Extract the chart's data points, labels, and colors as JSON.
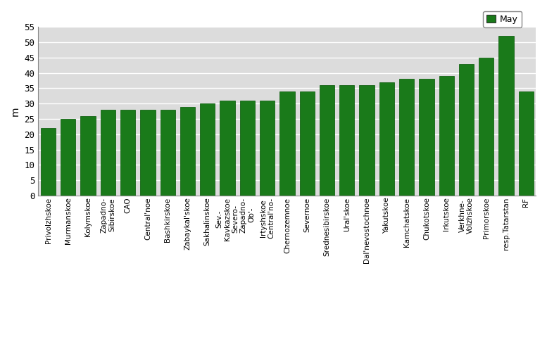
{
  "categories": [
    "Privolzhskoe",
    "Murmanskoe",
    "Kolymskoe",
    "Zapadno-\nSibirskoe",
    "CAO",
    "Central'noe",
    "Bashkirskoe",
    "Zabaykal'skoe",
    "Sakhalinskoe",
    "Sev.-\nKavkazskoe\nSevero-",
    "Zapadno-\nOb'-",
    "Irtyshskoe\nCentral'no-",
    "Chernozemnoe",
    "Severnoe",
    "Srednesibirskoe",
    "Ural'skoe",
    "Dal'nevostochnoe",
    "Yakutskoe",
    "Kamchatskoe",
    "Chukotskoe",
    "Irkutskoe",
    "Verkhne-\nVolzhskoe",
    "Primorskoe",
    "resp.Tatarstan",
    "RF"
  ],
  "values": [
    22,
    25,
    26,
    28,
    28,
    28,
    28,
    29,
    30,
    31,
    31,
    31,
    34,
    34,
    36,
    36,
    36,
    37,
    38,
    38,
    39,
    43,
    45,
    52,
    34
  ],
  "bar_color": "#1a7a1a",
  "bar_edge_color": "#005500",
  "ylabel": "m",
  "ylim": [
    0,
    55
  ],
  "yticks": [
    0,
    5,
    10,
    15,
    20,
    25,
    30,
    35,
    40,
    45,
    50,
    55
  ],
  "legend_label": "May",
  "legend_color": "#1a7a1a",
  "bg_color": "#dcdcdc",
  "fig_bg_color": "#ffffff",
  "grid_color": "#ffffff"
}
